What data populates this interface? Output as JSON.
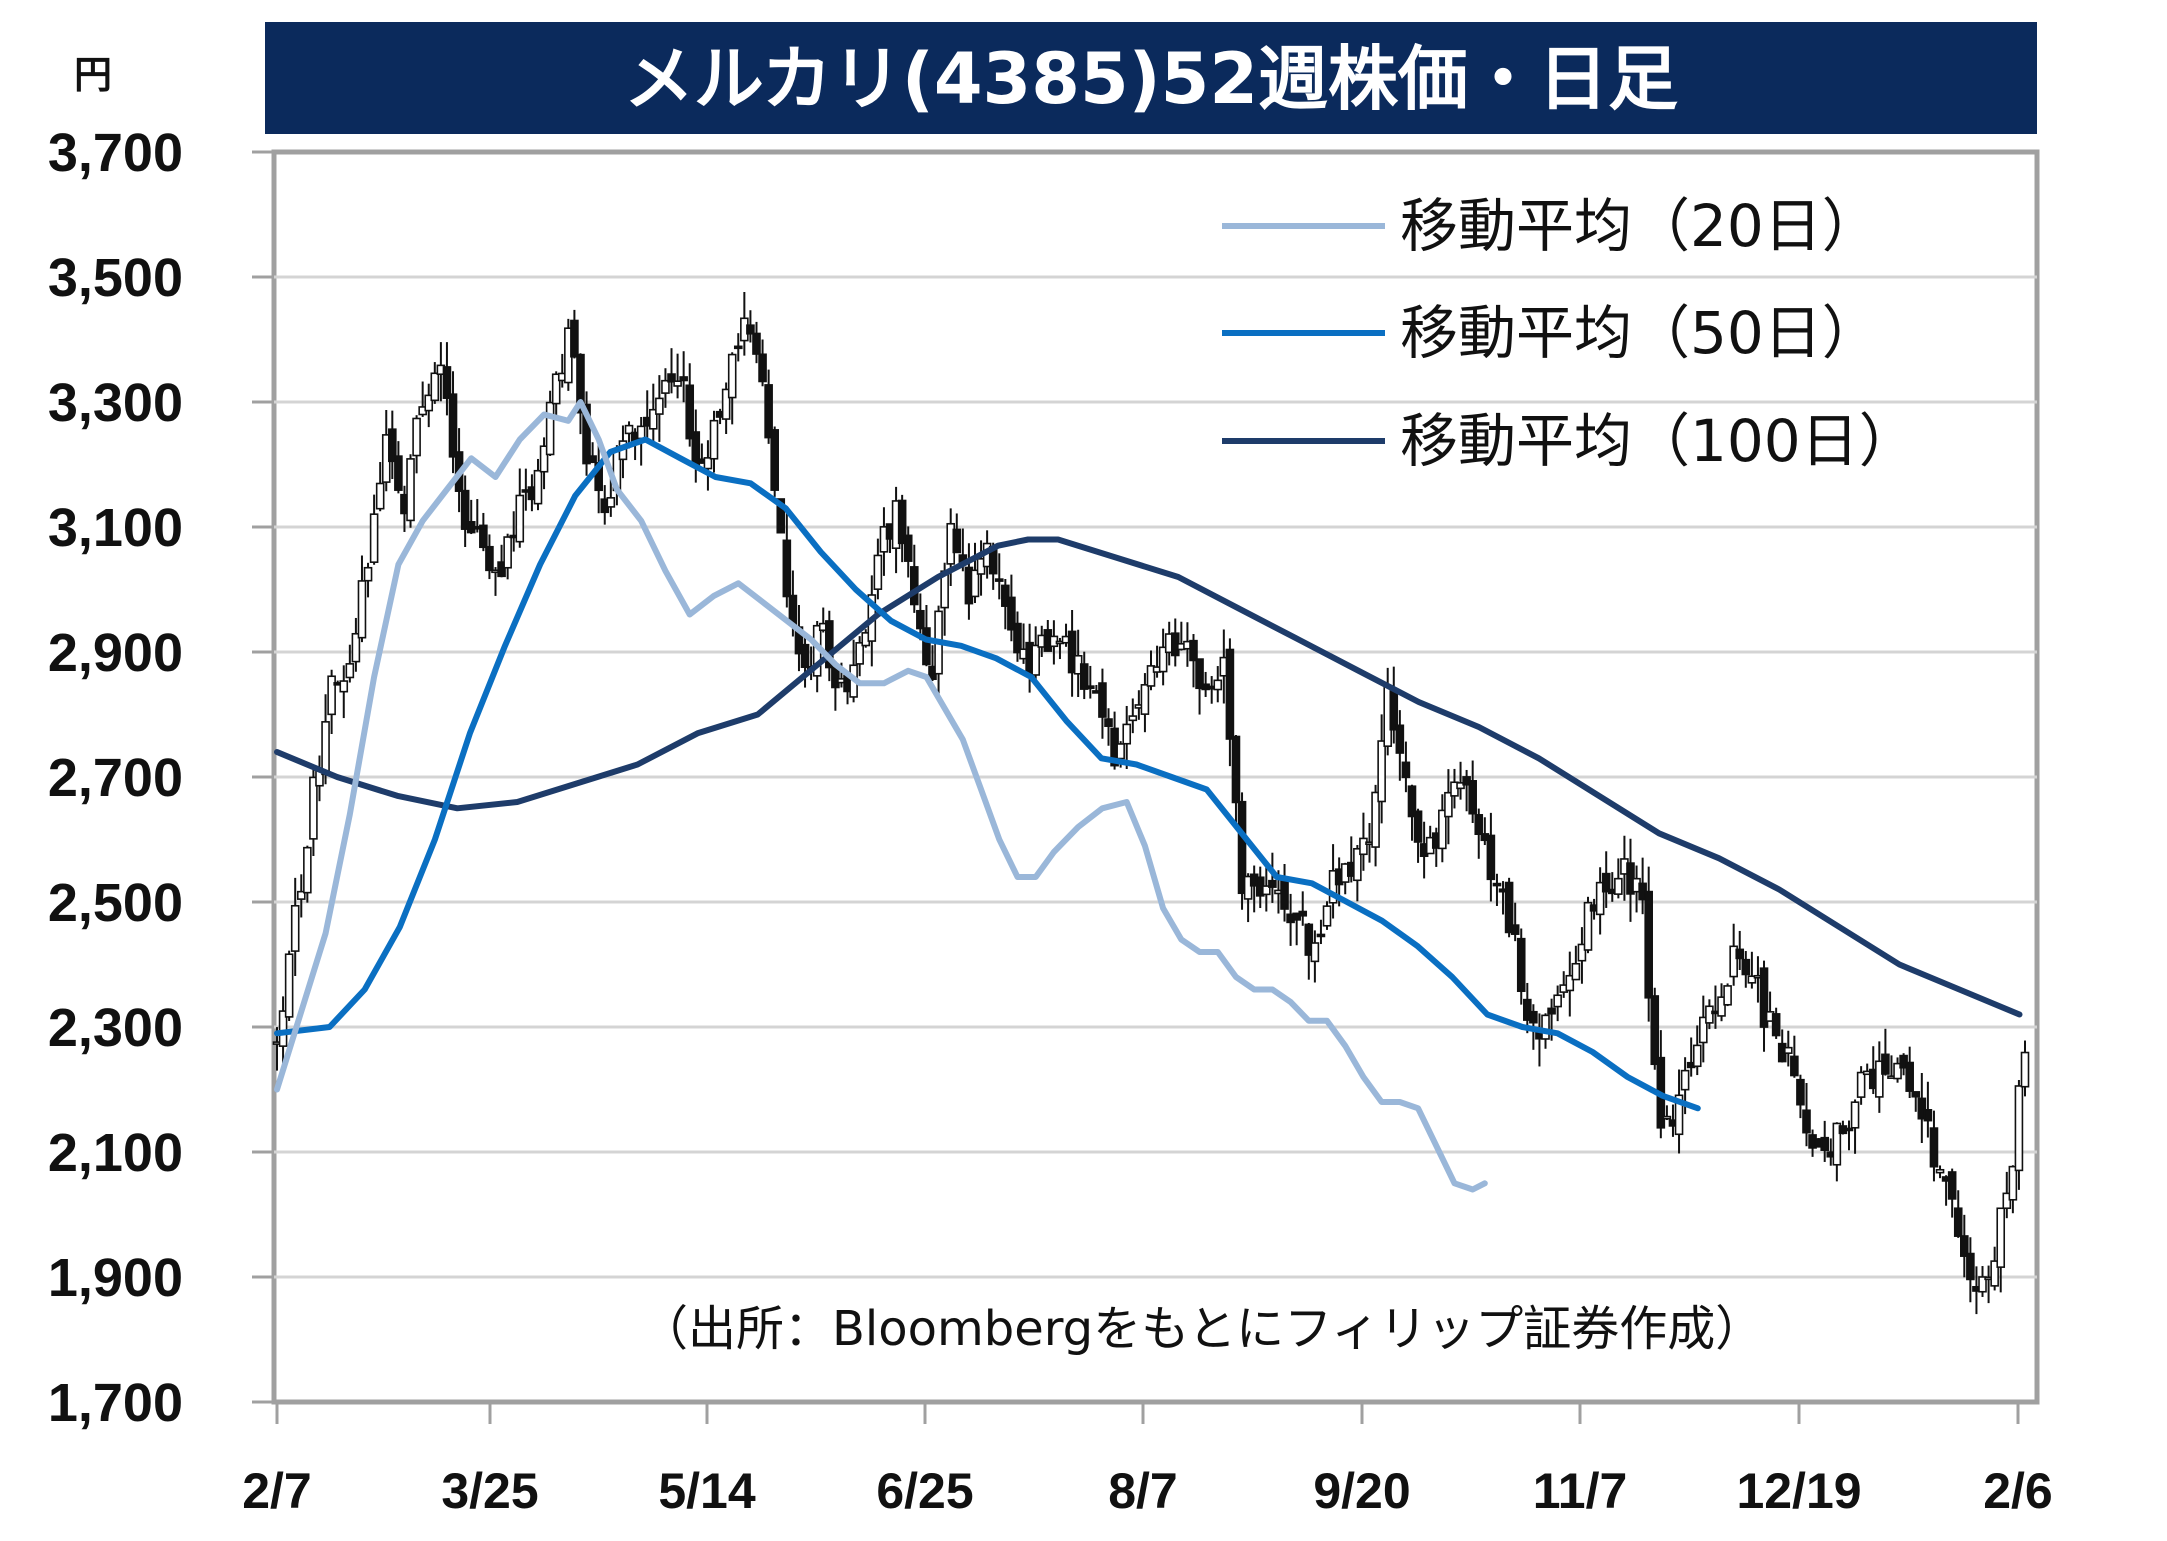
{
  "chart_data": {
    "type": "candlestick",
    "title": "メルカリ(4385)52週株価・日足",
    "unit_label": "円",
    "ylim": [
      1700,
      3700
    ],
    "yticks": [
      1700,
      1900,
      2100,
      2300,
      2500,
      2700,
      2900,
      3100,
      3300,
      3500,
      3700
    ],
    "ytick_labels": [
      "1,700",
      "1,900",
      "2,100",
      "2,300",
      "2,500",
      "2,700",
      "2,900",
      "3,100",
      "3,300",
      "3,500",
      "3,700"
    ],
    "x_tick_labels": [
      "2/7",
      "3/25",
      "5/14",
      "6/25",
      "8/7",
      "9/20",
      "11/7",
      "12/19",
      "2/6"
    ],
    "grid": true,
    "legend_position": "top-right",
    "source": "（出所：Bloombergをもとにフィリップ証券作成）",
    "price_anchors": [
      [
        0,
        2280
      ],
      [
        3,
        2470
      ],
      [
        6,
        2680
      ],
      [
        9,
        2850
      ],
      [
        12,
        2870
      ],
      [
        15,
        3050
      ],
      [
        18,
        3250
      ],
      [
        21,
        3150
      ],
      [
        24,
        3300
      ],
      [
        27,
        3370
      ],
      [
        30,
        3150
      ],
      [
        33,
        3070
      ],
      [
        36,
        3010
      ],
      [
        39,
        3110
      ],
      [
        42,
        3150
      ],
      [
        45,
        3290
      ],
      [
        48,
        3400
      ],
      [
        51,
        3230
      ],
      [
        54,
        3120
      ],
      [
        57,
        3240
      ],
      [
        60,
        3270
      ],
      [
        63,
        3330
      ],
      [
        66,
        3360
      ],
      [
        69,
        3200
      ],
      [
        72,
        3250
      ],
      [
        75,
        3380
      ],
      [
        78,
        3430
      ],
      [
        81,
        3260
      ],
      [
        84,
        2990
      ],
      [
        87,
        2880
      ],
      [
        90,
        2930
      ],
      [
        93,
        2830
      ],
      [
        96,
        2910
      ],
      [
        99,
        3050
      ],
      [
        102,
        3120
      ],
      [
        105,
        2980
      ],
      [
        108,
        2870
      ],
      [
        111,
        3100
      ],
      [
        114,
        2990
      ],
      [
        117,
        3050
      ],
      [
        120,
        2990
      ],
      [
        123,
        2880
      ],
      [
        126,
        2900
      ],
      [
        129,
        2920
      ],
      [
        132,
        2880
      ],
      [
        135,
        2810
      ],
      [
        138,
        2740
      ],
      [
        141,
        2800
      ],
      [
        144,
        2860
      ],
      [
        147,
        2910
      ],
      [
        150,
        2900
      ],
      [
        153,
        2840
      ],
      [
        156,
        2870
      ],
      [
        159,
        2540
      ],
      [
        162,
        2500
      ],
      [
        165,
        2530
      ],
      [
        168,
        2470
      ],
      [
        171,
        2430
      ],
      [
        174,
        2530
      ],
      [
        177,
        2560
      ],
      [
        180,
        2620
      ],
      [
        183,
        2830
      ],
      [
        186,
        2680
      ],
      [
        189,
        2570
      ],
      [
        192,
        2630
      ],
      [
        195,
        2680
      ],
      [
        198,
        2620
      ],
      [
        201,
        2530
      ],
      [
        204,
        2430
      ],
      [
        207,
        2290
      ],
      [
        210,
        2300
      ],
      [
        213,
        2370
      ],
      [
        216,
        2480
      ],
      [
        219,
        2530
      ],
      [
        222,
        2560
      ],
      [
        225,
        2500
      ],
      [
        228,
        2120
      ],
      [
        231,
        2180
      ],
      [
        234,
        2290
      ],
      [
        237,
        2320
      ],
      [
        240,
        2410
      ],
      [
        243,
        2380
      ],
      [
        246,
        2300
      ],
      [
        249,
        2250
      ],
      [
        252,
        2130
      ],
      [
        255,
        2090
      ],
      [
        258,
        2150
      ],
      [
        261,
        2200
      ],
      [
        264,
        2230
      ],
      [
        267,
        2220
      ],
      [
        270,
        2180
      ],
      [
        273,
        2100
      ],
      [
        276,
        2020
      ],
      [
        279,
        1870
      ],
      [
        282,
        1880
      ],
      [
        285,
        2030
      ],
      [
        288,
        2250
      ]
    ],
    "series": [
      {
        "name": "移動平均（20日）",
        "color": "#9ab7d9",
        "points": [
          [
            0,
            2200
          ],
          [
            8,
            2450
          ],
          [
            12,
            2640
          ],
          [
            16,
            2860
          ],
          [
            20,
            3040
          ],
          [
            24,
            3110
          ],
          [
            28,
            3160
          ],
          [
            32,
            3210
          ],
          [
            36,
            3180
          ],
          [
            40,
            3240
          ],
          [
            44,
            3280
          ],
          [
            48,
            3270
          ],
          [
            50,
            3300
          ],
          [
            53,
            3240
          ],
          [
            56,
            3160
          ],
          [
            60,
            3110
          ],
          [
            64,
            3030
          ],
          [
            68,
            2960
          ],
          [
            72,
            2990
          ],
          [
            76,
            3010
          ],
          [
            80,
            2980
          ],
          [
            84,
            2950
          ],
          [
            88,
            2920
          ],
          [
            92,
            2880
          ],
          [
            96,
            2850
          ],
          [
            100,
            2850
          ],
          [
            104,
            2870
          ],
          [
            107,
            2860
          ],
          [
            110,
            2810
          ],
          [
            113,
            2760
          ],
          [
            116,
            2680
          ],
          [
            119,
            2600
          ],
          [
            122,
            2540
          ],
          [
            125,
            2540
          ],
          [
            128,
            2580
          ],
          [
            132,
            2620
          ],
          [
            136,
            2650
          ],
          [
            140,
            2660
          ],
          [
            143,
            2590
          ],
          [
            146,
            2490
          ],
          [
            149,
            2440
          ],
          [
            152,
            2420
          ],
          [
            155,
            2420
          ],
          [
            158,
            2380
          ],
          [
            161,
            2360
          ],
          [
            164,
            2360
          ],
          [
            167,
            2340
          ],
          [
            170,
            2310
          ],
          [
            173,
            2310
          ],
          [
            176,
            2270
          ],
          [
            179,
            2220
          ],
          [
            182,
            2180
          ],
          [
            185,
            2180
          ],
          [
            188,
            2170
          ],
          [
            191,
            2110
          ],
          [
            194,
            2050
          ],
          [
            197,
            2040
          ],
          [
            199,
            2050
          ]
        ]
      },
      {
        "name": "移動平均（50日）",
        "color": "#0a6fc2",
        "points": [
          [
            0,
            2290
          ],
          [
            6,
            2300
          ],
          [
            10,
            2360
          ],
          [
            14,
            2460
          ],
          [
            18,
            2600
          ],
          [
            22,
            2770
          ],
          [
            26,
            2910
          ],
          [
            30,
            3040
          ],
          [
            34,
            3150
          ],
          [
            38,
            3220
          ],
          [
            42,
            3240
          ],
          [
            46,
            3210
          ],
          [
            50,
            3180
          ],
          [
            54,
            3170
          ],
          [
            58,
            3130
          ],
          [
            62,
            3060
          ],
          [
            66,
            3000
          ],
          [
            70,
            2950
          ],
          [
            74,
            2920
          ],
          [
            78,
            2910
          ],
          [
            82,
            2890
          ],
          [
            86,
            2860
          ],
          [
            90,
            2790
          ],
          [
            94,
            2730
          ],
          [
            98,
            2720
          ],
          [
            102,
            2700
          ],
          [
            106,
            2680
          ],
          [
            110,
            2610
          ],
          [
            114,
            2540
          ],
          [
            118,
            2530
          ],
          [
            122,
            2500
          ],
          [
            126,
            2470
          ],
          [
            130,
            2430
          ],
          [
            134,
            2380
          ],
          [
            138,
            2320
          ],
          [
            142,
            2300
          ],
          [
            146,
            2290
          ],
          [
            150,
            2260
          ],
          [
            154,
            2220
          ],
          [
            158,
            2190
          ],
          [
            162,
            2170
          ]
        ]
      },
      {
        "name": "移動平均（100日）",
        "color": "#1e3c6a",
        "points": [
          [
            0,
            2740
          ],
          [
            6,
            2700
          ],
          [
            12,
            2670
          ],
          [
            18,
            2650
          ],
          [
            24,
            2660
          ],
          [
            30,
            2690
          ],
          [
            36,
            2720
          ],
          [
            42,
            2770
          ],
          [
            48,
            2800
          ],
          [
            54,
            2880
          ],
          [
            60,
            2960
          ],
          [
            66,
            3020
          ],
          [
            72,
            3070
          ],
          [
            75,
            3080
          ],
          [
            78,
            3080
          ],
          [
            84,
            3050
          ],
          [
            90,
            3020
          ],
          [
            96,
            2970
          ],
          [
            102,
            2920
          ],
          [
            108,
            2870
          ],
          [
            114,
            2820
          ],
          [
            120,
            2780
          ],
          [
            126,
            2730
          ],
          [
            132,
            2670
          ],
          [
            138,
            2610
          ],
          [
            144,
            2570
          ],
          [
            150,
            2520
          ],
          [
            156,
            2460
          ],
          [
            162,
            2400
          ],
          [
            168,
            2360
          ],
          [
            174,
            2320
          ]
        ]
      }
    ]
  }
}
